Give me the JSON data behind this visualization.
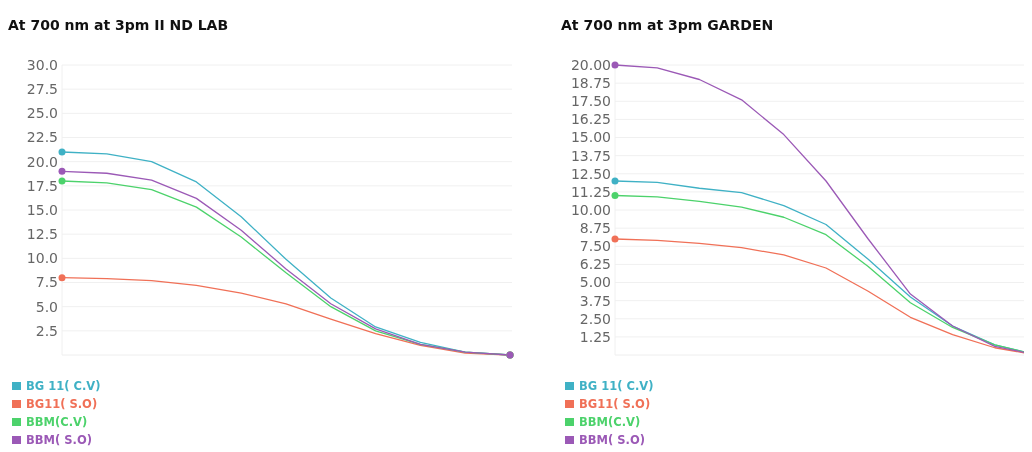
{
  "chart_data": [
    {
      "type": "line",
      "title": "At 700 nm at 3pm II ND LAB",
      "categories": [
        null,
        null,
        null,
        null,
        null,
        null,
        null,
        null,
        null,
        null,
        null
      ],
      "series": [
        {
          "name": "BG 11( C.V)",
          "color": "#3fb1c5",
          "values": [
            21,
            20.8,
            20,
            17.9,
            14.3,
            9.9,
            5.9,
            2.9,
            1.3,
            0.3,
            0
          ]
        },
        {
          "name": "BG11( S.O)",
          "color": "#f07057",
          "values": [
            8,
            7.9,
            7.7,
            7.2,
            6.4,
            5.3,
            3.7,
            2.2,
            1,
            0.2,
            0
          ]
        },
        {
          "name": "BBM(C.V)",
          "color": "#4cd26b",
          "values": [
            18,
            17.8,
            17.1,
            15.3,
            12.2,
            8.5,
            5,
            2.5,
            1.1,
            0.3,
            0
          ]
        },
        {
          "name": "BBM( S.O)",
          "color": "#9b59b6",
          "values": [
            19,
            18.8,
            18.1,
            16.2,
            12.9,
            8.9,
            5.3,
            2.7,
            1.1,
            0.3,
            0
          ]
        },
        {
          "type": "scatter",
          "color": "#3fb1c5",
          "values": [
            21,
            null,
            null,
            null,
            null,
            null,
            null,
            null,
            null,
            null,
            0
          ]
        },
        {
          "type": "scatter",
          "color": "#f07057",
          "values": [
            8,
            null,
            null,
            null,
            null,
            null,
            null,
            null,
            null,
            null,
            0
          ]
        },
        {
          "type": "scatter",
          "color": "#4cd26b",
          "values": [
            18,
            null,
            null,
            null,
            null,
            null,
            null,
            null,
            null,
            null,
            0
          ]
        },
        {
          "type": "scatter",
          "color": "#9b59b6",
          "values": [
            19,
            null,
            null,
            null,
            null,
            null,
            null,
            null,
            null,
            null,
            0
          ]
        }
      ],
      "ylim": [
        0,
        30
      ],
      "yticks": [
        {
          "value": 2.5,
          "label": "2.5"
        },
        {
          "value": 5,
          "label": "5.0"
        },
        {
          "value": 7.5,
          "label": "7.5"
        },
        {
          "value": 10,
          "label": "10.0"
        },
        {
          "value": 12.5,
          "label": "12.5"
        },
        {
          "value": 15,
          "label": "15.0"
        },
        {
          "value": 17.5,
          "label": "17.5"
        },
        {
          "value": 20,
          "label": "20.0"
        },
        {
          "value": 22.5,
          "label": "22.5"
        },
        {
          "value": 25,
          "label": "25.0"
        },
        {
          "value": 27.5,
          "label": "27.5"
        },
        {
          "value": 30,
          "label": "30.0"
        }
      ],
      "grid": "y",
      "legend": "bottom"
    },
    {
      "type": "line",
      "title": "At 700 nm at 3pm GARDEN",
      "categories": [
        null,
        null,
        null,
        null,
        null,
        null,
        null,
        null,
        null,
        null,
        null
      ],
      "series": [
        {
          "name": "BG 11( C.V)",
          "color": "#3fb1c5",
          "values": [
            12,
            11.9,
            11.5,
            11.2,
            10.3,
            9,
            6.6,
            4,
            2,
            0.7,
            0
          ]
        },
        {
          "name": "BG11( S.O)",
          "color": "#f07057",
          "values": [
            8,
            7.9,
            7.7,
            7.4,
            6.9,
            6,
            4.4,
            2.6,
            1.4,
            0.5,
            0
          ]
        },
        {
          "name": "BBM(C.V)",
          "color": "#4cd26b",
          "values": [
            11,
            10.9,
            10.6,
            10.2,
            9.5,
            8.3,
            6.1,
            3.6,
            1.9,
            0.7,
            0
          ]
        },
        {
          "name": "BBM( S.O)",
          "color": "#9b59b6",
          "values": [
            20,
            19.8,
            19,
            17.6,
            15.2,
            12,
            8,
            4.2,
            2,
            0.6,
            0
          ]
        },
        {
          "type": "scatter",
          "color": "#3fb1c5",
          "values": [
            12,
            null,
            null,
            null,
            null,
            null,
            null,
            null,
            null,
            null,
            null
          ]
        },
        {
          "type": "scatter",
          "color": "#f07057",
          "values": [
            8,
            null,
            null,
            null,
            null,
            null,
            null,
            null,
            null,
            null,
            null
          ]
        },
        {
          "type": "scatter",
          "color": "#4cd26b",
          "values": [
            11,
            null,
            null,
            null,
            null,
            null,
            null,
            null,
            null,
            null,
            null
          ]
        },
        {
          "type": "scatter",
          "color": "#9b59b6",
          "values": [
            20,
            null,
            null,
            null,
            null,
            null,
            null,
            null,
            null,
            null,
            null
          ]
        }
      ],
      "ylim": [
        0,
        20
      ],
      "yticks": [
        1.25,
        {
          "value": 2.5,
          "label": "2.50"
        },
        3.75,
        {
          "value": 5,
          "label": "5.00"
        },
        6.25,
        {
          "value": 7.5,
          "label": "7.50"
        },
        8.75,
        {
          "value": 10,
          "label": "10.00"
        },
        11.25,
        {
          "value": 12.5,
          "label": "12.50"
        },
        13.75,
        {
          "value": 15,
          "label": "15.00"
        },
        16.25,
        {
          "value": 17.5,
          "label": "17.50"
        },
        18.75,
        {
          "value": 20,
          "label": "20.00"
        }
      ],
      "grid": "y",
      "legend": "bottom"
    }
  ]
}
